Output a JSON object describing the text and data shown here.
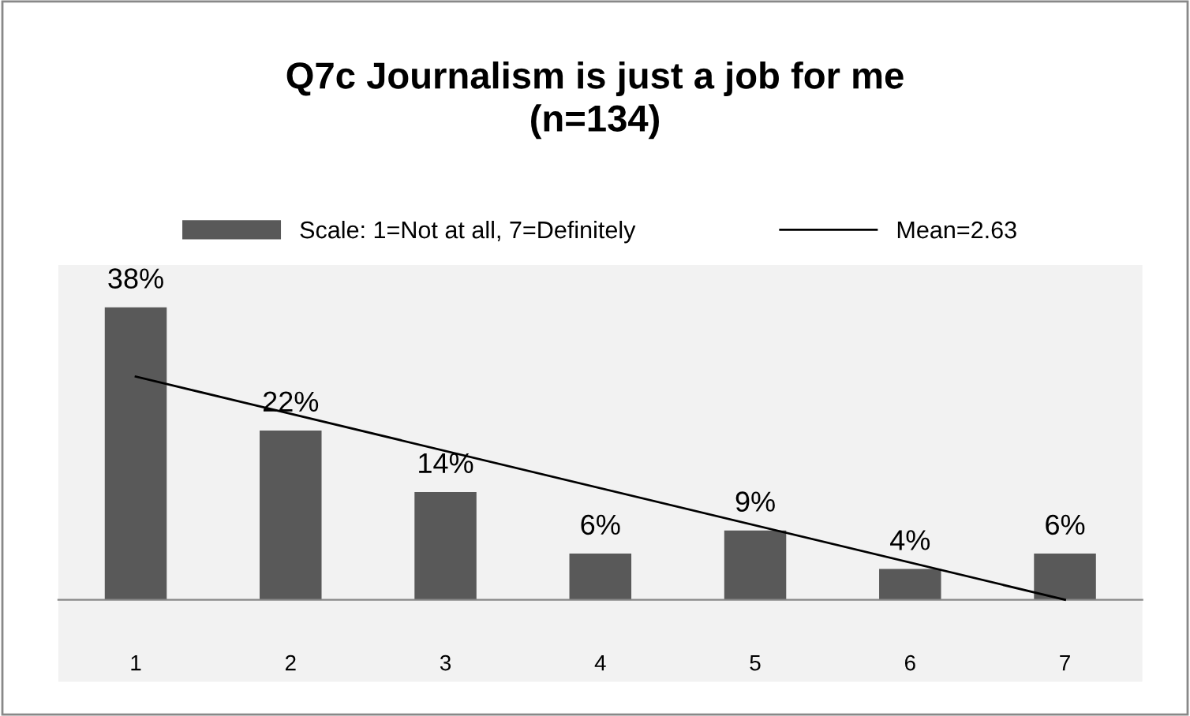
{
  "chart_data": {
    "type": "bar",
    "title": "Q7c Journalism is just a job for me\n(n=134)",
    "categories": [
      "1",
      "2",
      "3",
      "4",
      "5",
      "6",
      "7"
    ],
    "series": [
      {
        "name": "Scale: 1=Not at all, 7=Definitely",
        "color": "#595959",
        "values": [
          38,
          22,
          14,
          6,
          9,
          4,
          6
        ],
        "value_labels": [
          "38%",
          "22%",
          "14%",
          "6%",
          "9%",
          "4%",
          "6%"
        ]
      },
      {
        "name": "Mean=2.63",
        "type": "line",
        "color": "#000000",
        "x": [
          "1",
          "7"
        ],
        "values": [
          29,
          0
        ]
      }
    ],
    "legend": "top",
    "grid": false
  }
}
